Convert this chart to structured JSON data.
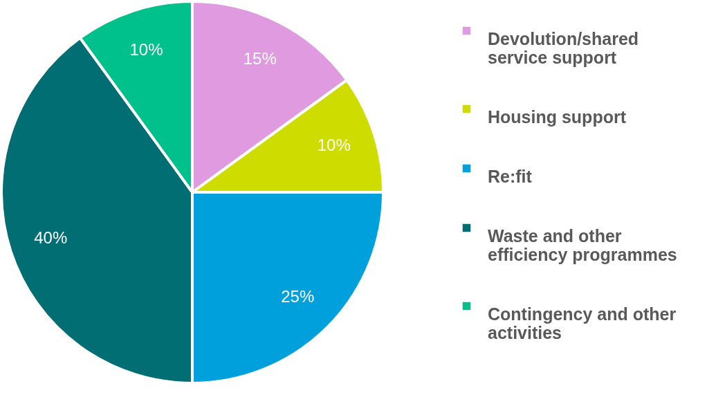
{
  "chart_data": {
    "type": "pie",
    "categories": [
      "Devolution/shared service support",
      "Housing support",
      "Re:fit",
      "Waste and other efficiency programmes",
      "Contingency and other activities"
    ],
    "values": [
      15,
      10,
      25,
      40,
      10
    ],
    "colors": [
      "#e09ae0",
      "#cfdc00",
      "#00a0dc",
      "#006e73",
      "#00c08b"
    ],
    "value_labels": [
      "15%",
      "10%",
      "25%",
      "40%",
      "10%"
    ],
    "legend": "right"
  }
}
